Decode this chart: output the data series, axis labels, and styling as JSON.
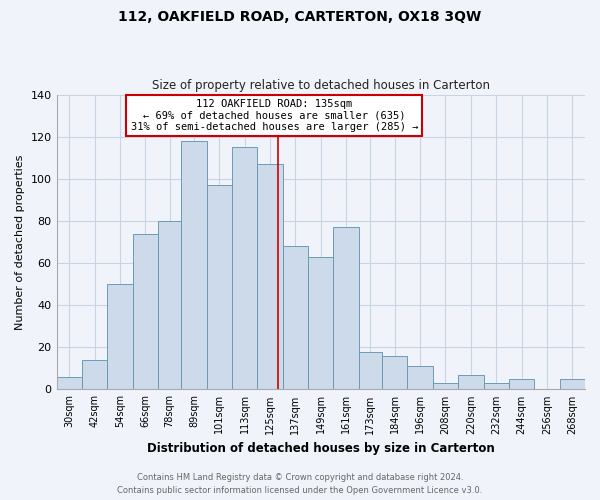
{
  "title": "112, OAKFIELD ROAD, CARTERTON, OX18 3QW",
  "subtitle": "Size of property relative to detached houses in Carterton",
  "xlabel": "Distribution of detached houses by size in Carterton",
  "ylabel": "Number of detached properties",
  "footer_line1": "Contains HM Land Registry data © Crown copyright and database right 2024.",
  "footer_line2": "Contains public sector information licensed under the Open Government Licence v3.0.",
  "categories": [
    "30sqm",
    "42sqm",
    "54sqm",
    "66sqm",
    "78sqm",
    "89sqm",
    "101sqm",
    "113sqm",
    "125sqm",
    "137sqm",
    "149sqm",
    "161sqm",
    "173sqm",
    "184sqm",
    "196sqm",
    "208sqm",
    "220sqm",
    "232sqm",
    "244sqm",
    "256sqm",
    "268sqm"
  ],
  "values": [
    6,
    14,
    50,
    74,
    80,
    118,
    97,
    115,
    107,
    68,
    63,
    77,
    18,
    16,
    11,
    3,
    7,
    3,
    5,
    0,
    5
  ],
  "bar_color": "#ccdaea",
  "bar_edge_color": "#6b9ab8",
  "reference_line_x": 135,
  "bin_edges": [
    30,
    42,
    54,
    66,
    78,
    89,
    101,
    113,
    125,
    137,
    149,
    161,
    173,
    184,
    196,
    208,
    220,
    232,
    244,
    256,
    268,
    280
  ],
  "annotation_title": "112 OAKFIELD ROAD: 135sqm",
  "annotation_line1": "← 69% of detached houses are smaller (635)",
  "annotation_line2": "31% of semi-detached houses are larger (285) →",
  "annotation_box_color": "#ffffff",
  "annotation_box_edge": "#cc0000",
  "ylim": [
    0,
    140
  ],
  "yticks": [
    0,
    20,
    40,
    60,
    80,
    100,
    120,
    140
  ],
  "bg_color": "#f0f4fa",
  "grid_color": "#c8d4e4"
}
